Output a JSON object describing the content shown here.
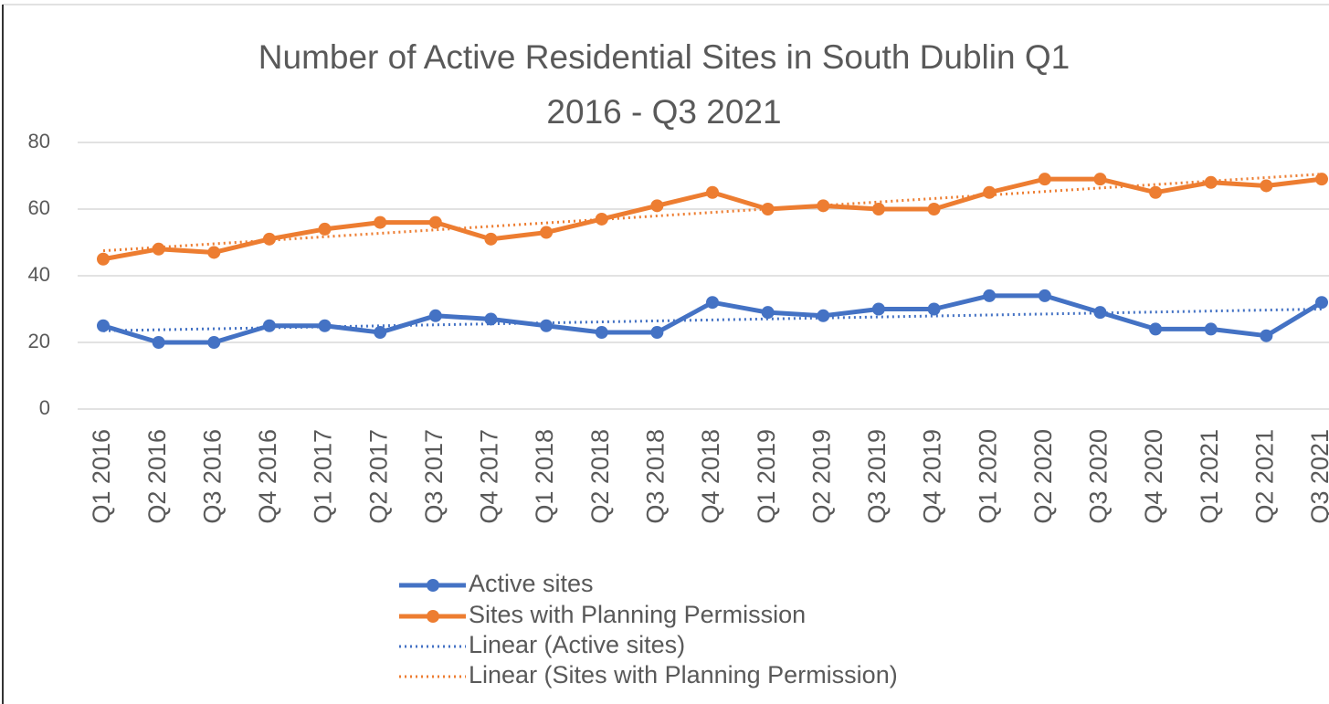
{
  "chart_data": {
    "type": "line",
    "title": [
      "Number of Active Residential Sites in South Dublin Q1",
      "2016 - Q3 2021"
    ],
    "categories": [
      "Q1 2016",
      "Q2 2016",
      "Q3 2016",
      "Q4 2016",
      "Q1 2017",
      "Q2 2017",
      "Q3 2017",
      "Q4 2017",
      "Q1 2018",
      "Q2 2018",
      "Q3 2018",
      "Q4 2018",
      "Q1 2019",
      "Q2 2019",
      "Q3 2019",
      "Q4 2019",
      "Q1 2020",
      "Q2 2020",
      "Q3 2020",
      "Q4 2020",
      "Q1 2021",
      "Q2 2021",
      "Q3 2021"
    ],
    "series": [
      {
        "name": "Active sites",
        "color": "#4472c4",
        "values": [
          25,
          20,
          20,
          25,
          25,
          23,
          28,
          27,
          25,
          23,
          23,
          32,
          29,
          28,
          30,
          30,
          34,
          34,
          29,
          24,
          24,
          22,
          32
        ]
      },
      {
        "name": "Sites with Planning Permission",
        "color": "#ed7d31",
        "values": [
          45,
          48,
          47,
          51,
          54,
          56,
          56,
          51,
          53,
          57,
          61,
          65,
          60,
          61,
          60,
          60,
          65,
          69,
          69,
          65,
          68,
          67,
          69
        ]
      }
    ],
    "trendlines": [
      {
        "name": "Linear (Active sites)",
        "color": "#4472c4",
        "values": [
          23.5,
          30
        ]
      },
      {
        "name": "Linear (Sites with Planning Permission)",
        "color": "#ed7d31",
        "values": [
          47.5,
          70.5
        ]
      }
    ],
    "ylim": [
      0,
      80
    ],
    "yticks": [
      0,
      20,
      40,
      60,
      80
    ],
    "grid": true,
    "legend": "bottom"
  }
}
